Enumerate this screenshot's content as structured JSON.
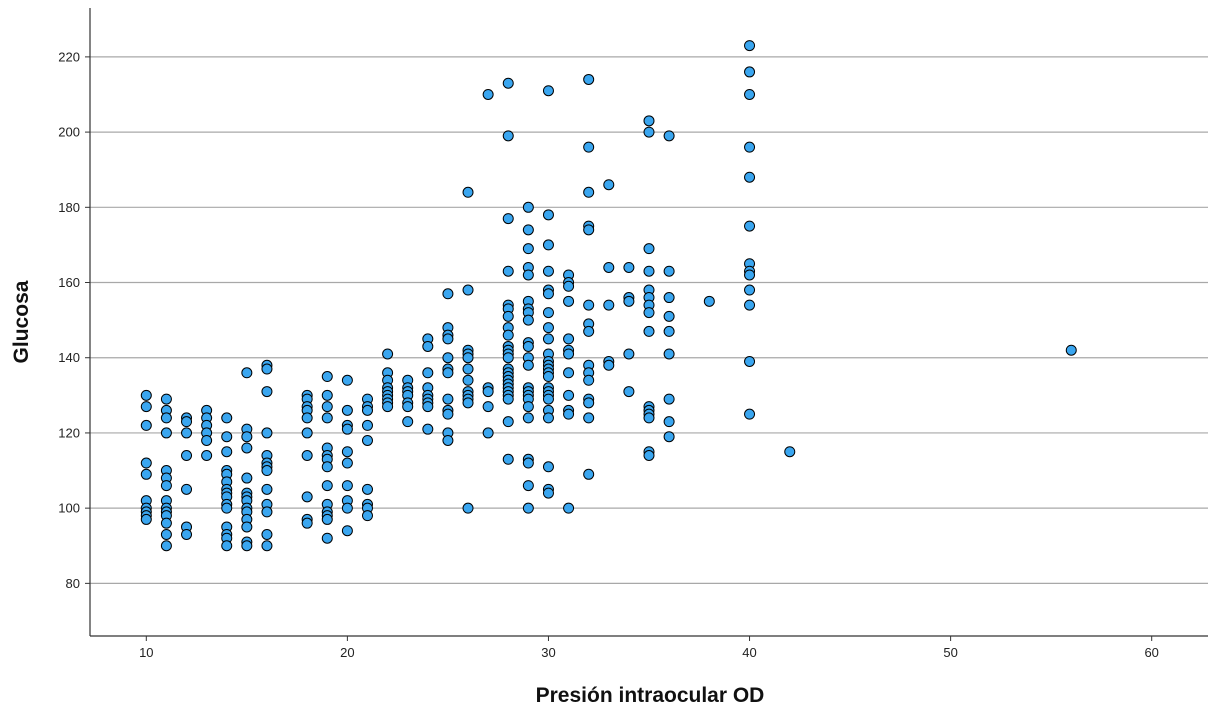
{
  "chart_data": {
    "type": "scatter",
    "xlabel": "Presión intraocular OD",
    "ylabel": "Glucosa",
    "xlim": [
      7.2,
      62.8
    ],
    "ylim": [
      66,
      233
    ],
    "x_ticks": [
      10,
      20,
      30,
      40,
      50,
      60
    ],
    "x_tick_labels": [
      "10",
      "20",
      "30",
      "40",
      "50",
      "60"
    ],
    "y_ticks": [
      80,
      100,
      120,
      140,
      160,
      180,
      200,
      220
    ],
    "y_tick_labels": [
      "80",
      "100",
      "120",
      "140",
      "160",
      "180",
      "200",
      "220"
    ],
    "grid": "horizontal",
    "marker_color": "#3aa6f0",
    "marker_edge_color": "#000000",
    "series": [
      {
        "points": [
          [
            10,
            130
          ],
          [
            10,
            127
          ],
          [
            10,
            122
          ],
          [
            10,
            112
          ],
          [
            10,
            109
          ],
          [
            10,
            102
          ],
          [
            10,
            100
          ],
          [
            10,
            99
          ],
          [
            10,
            98
          ],
          [
            10,
            97
          ],
          [
            11,
            129
          ],
          [
            11,
            126
          ],
          [
            11,
            124
          ],
          [
            11,
            120
          ],
          [
            11,
            110
          ],
          [
            11,
            108
          ],
          [
            11,
            106
          ],
          [
            11,
            102
          ],
          [
            11,
            100
          ],
          [
            11,
            99
          ],
          [
            11,
            98
          ],
          [
            11,
            96
          ],
          [
            11,
            93
          ],
          [
            11,
            90
          ],
          [
            12,
            124
          ],
          [
            12,
            123
          ],
          [
            12,
            120
          ],
          [
            12,
            114
          ],
          [
            12,
            105
          ],
          [
            12,
            95
          ],
          [
            12,
            93
          ],
          [
            13,
            126
          ],
          [
            13,
            124
          ],
          [
            13,
            122
          ],
          [
            13,
            120
          ],
          [
            13,
            118
          ],
          [
            13,
            114
          ],
          [
            14,
            124
          ],
          [
            14,
            119
          ],
          [
            14,
            115
          ],
          [
            14,
            110
          ],
          [
            14,
            109
          ],
          [
            14,
            107
          ],
          [
            14,
            105
          ],
          [
            14,
            104
          ],
          [
            14,
            103
          ],
          [
            14,
            101
          ],
          [
            14,
            100
          ],
          [
            14,
            95
          ],
          [
            14,
            93
          ],
          [
            14,
            92
          ],
          [
            14,
            90
          ],
          [
            15,
            136
          ],
          [
            15,
            121
          ],
          [
            15,
            119
          ],
          [
            15,
            116
          ],
          [
            15,
            108
          ],
          [
            15,
            104
          ],
          [
            15,
            103
          ],
          [
            15,
            102
          ],
          [
            15,
            100
          ],
          [
            15,
            99
          ],
          [
            15,
            97
          ],
          [
            15,
            95
          ],
          [
            15,
            91
          ],
          [
            15,
            90
          ],
          [
            16,
            138
          ],
          [
            16,
            137
          ],
          [
            16,
            131
          ],
          [
            16,
            120
          ],
          [
            16,
            114
          ],
          [
            16,
            112
          ],
          [
            16,
            111
          ],
          [
            16,
            110
          ],
          [
            16,
            105
          ],
          [
            16,
            101
          ],
          [
            16,
            99
          ],
          [
            16,
            93
          ],
          [
            16,
            90
          ],
          [
            18,
            130
          ],
          [
            18,
            129
          ],
          [
            18,
            127
          ],
          [
            18,
            126
          ],
          [
            18,
            124
          ],
          [
            18,
            120
          ],
          [
            18,
            114
          ],
          [
            18,
            103
          ],
          [
            18,
            97
          ],
          [
            18,
            96
          ],
          [
            19,
            135
          ],
          [
            19,
            130
          ],
          [
            19,
            127
          ],
          [
            19,
            124
          ],
          [
            19,
            116
          ],
          [
            19,
            114
          ],
          [
            19,
            113
          ],
          [
            19,
            111
          ],
          [
            19,
            106
          ],
          [
            19,
            101
          ],
          [
            19,
            99
          ],
          [
            19,
            98
          ],
          [
            19,
            97
          ],
          [
            19,
            92
          ],
          [
            20,
            134
          ],
          [
            20,
            126
          ],
          [
            20,
            122
          ],
          [
            20,
            121
          ],
          [
            20,
            115
          ],
          [
            20,
            112
          ],
          [
            20,
            106
          ],
          [
            20,
            102
          ],
          [
            20,
            100
          ],
          [
            20,
            94
          ],
          [
            21,
            129
          ],
          [
            21,
            127
          ],
          [
            21,
            126
          ],
          [
            21,
            122
          ],
          [
            21,
            118
          ],
          [
            21,
            105
          ],
          [
            21,
            101
          ],
          [
            21,
            100
          ],
          [
            21,
            98
          ],
          [
            22,
            141
          ],
          [
            22,
            136
          ],
          [
            22,
            134
          ],
          [
            22,
            132
          ],
          [
            22,
            131
          ],
          [
            22,
            130
          ],
          [
            22,
            129
          ],
          [
            22,
            128
          ],
          [
            22,
            127
          ],
          [
            23,
            134
          ],
          [
            23,
            132
          ],
          [
            23,
            131
          ],
          [
            23,
            130
          ],
          [
            23,
            128
          ],
          [
            23,
            127
          ],
          [
            23,
            123
          ],
          [
            24,
            145
          ],
          [
            24,
            143
          ],
          [
            24,
            136
          ],
          [
            24,
            132
          ],
          [
            24,
            130
          ],
          [
            24,
            129
          ],
          [
            24,
            128
          ],
          [
            24,
            127
          ],
          [
            24,
            121
          ],
          [
            25,
            157
          ],
          [
            25,
            148
          ],
          [
            25,
            146
          ],
          [
            25,
            145
          ],
          [
            25,
            140
          ],
          [
            25,
            137
          ],
          [
            25,
            136
          ],
          [
            25,
            129
          ],
          [
            25,
            126
          ],
          [
            25,
            125
          ],
          [
            25,
            120
          ],
          [
            25,
            118
          ],
          [
            26,
            184
          ],
          [
            26,
            158
          ],
          [
            26,
            142
          ],
          [
            26,
            141
          ],
          [
            26,
            140
          ],
          [
            26,
            137
          ],
          [
            26,
            134
          ],
          [
            26,
            131
          ],
          [
            26,
            130
          ],
          [
            26,
            129
          ],
          [
            26,
            128
          ],
          [
            26,
            100
          ],
          [
            27,
            210
          ],
          [
            27,
            132
          ],
          [
            27,
            131
          ],
          [
            27,
            127
          ],
          [
            27,
            120
          ],
          [
            28,
            213
          ],
          [
            28,
            199
          ],
          [
            28,
            177
          ],
          [
            28,
            163
          ],
          [
            28,
            154
          ],
          [
            28,
            153
          ],
          [
            28,
            151
          ],
          [
            28,
            148
          ],
          [
            28,
            146
          ],
          [
            28,
            143
          ],
          [
            28,
            142
          ],
          [
            28,
            141
          ],
          [
            28,
            140
          ],
          [
            28,
            137
          ],
          [
            28,
            136
          ],
          [
            28,
            135
          ],
          [
            28,
            134
          ],
          [
            28,
            133
          ],
          [
            28,
            132
          ],
          [
            28,
            131
          ],
          [
            28,
            130
          ],
          [
            28,
            129
          ],
          [
            28,
            123
          ],
          [
            28,
            113
          ],
          [
            29,
            180
          ],
          [
            29,
            174
          ],
          [
            29,
            169
          ],
          [
            29,
            164
          ],
          [
            29,
            162
          ],
          [
            29,
            155
          ],
          [
            29,
            153
          ],
          [
            29,
            152
          ],
          [
            29,
            150
          ],
          [
            29,
            144
          ],
          [
            29,
            143
          ],
          [
            29,
            140
          ],
          [
            29,
            138
          ],
          [
            29,
            132
          ],
          [
            29,
            131
          ],
          [
            29,
            130
          ],
          [
            29,
            129
          ],
          [
            29,
            127
          ],
          [
            29,
            124
          ],
          [
            29,
            113
          ],
          [
            29,
            112
          ],
          [
            29,
            106
          ],
          [
            29,
            100
          ],
          [
            30,
            211
          ],
          [
            30,
            178
          ],
          [
            30,
            170
          ],
          [
            30,
            163
          ],
          [
            30,
            158
          ],
          [
            30,
            157
          ],
          [
            30,
            152
          ],
          [
            30,
            148
          ],
          [
            30,
            145
          ],
          [
            30,
            141
          ],
          [
            30,
            139
          ],
          [
            30,
            138
          ],
          [
            30,
            137
          ],
          [
            30,
            136
          ],
          [
            30,
            135
          ],
          [
            30,
            132
          ],
          [
            30,
            131
          ],
          [
            30,
            130
          ],
          [
            30,
            129
          ],
          [
            30,
            126
          ],
          [
            30,
            124
          ],
          [
            30,
            111
          ],
          [
            30,
            105
          ],
          [
            30,
            104
          ],
          [
            31,
            162
          ],
          [
            31,
            160
          ],
          [
            31,
            159
          ],
          [
            31,
            155
          ],
          [
            31,
            145
          ],
          [
            31,
            142
          ],
          [
            31,
            141
          ],
          [
            31,
            136
          ],
          [
            31,
            130
          ],
          [
            31,
            126
          ],
          [
            31,
            125
          ],
          [
            31,
            100
          ],
          [
            32,
            214
          ],
          [
            32,
            196
          ],
          [
            32,
            184
          ],
          [
            32,
            175
          ],
          [
            32,
            174
          ],
          [
            32,
            154
          ],
          [
            32,
            149
          ],
          [
            32,
            147
          ],
          [
            32,
            138
          ],
          [
            32,
            136
          ],
          [
            32,
            134
          ],
          [
            32,
            129
          ],
          [
            32,
            128
          ],
          [
            32,
            124
          ],
          [
            32,
            109
          ],
          [
            33,
            186
          ],
          [
            33,
            164
          ],
          [
            33,
            154
          ],
          [
            33,
            139
          ],
          [
            33,
            138
          ],
          [
            34,
            164
          ],
          [
            34,
            156
          ],
          [
            34,
            155
          ],
          [
            34,
            141
          ],
          [
            34,
            131
          ],
          [
            35,
            203
          ],
          [
            35,
            200
          ],
          [
            35,
            169
          ],
          [
            35,
            163
          ],
          [
            35,
            158
          ],
          [
            35,
            156
          ],
          [
            35,
            154
          ],
          [
            35,
            152
          ],
          [
            35,
            147
          ],
          [
            35,
            127
          ],
          [
            35,
            126
          ],
          [
            35,
            125
          ],
          [
            35,
            124
          ],
          [
            35,
            115
          ],
          [
            35,
            114
          ],
          [
            36,
            199
          ],
          [
            36,
            163
          ],
          [
            36,
            156
          ],
          [
            36,
            151
          ],
          [
            36,
            147
          ],
          [
            36,
            141
          ],
          [
            36,
            129
          ],
          [
            36,
            123
          ],
          [
            36,
            119
          ],
          [
            38,
            155
          ],
          [
            40,
            223
          ],
          [
            40,
            216
          ],
          [
            40,
            210
          ],
          [
            40,
            196
          ],
          [
            40,
            188
          ],
          [
            40,
            175
          ],
          [
            40,
            165
          ],
          [
            40,
            163
          ],
          [
            40,
            162
          ],
          [
            40,
            158
          ],
          [
            40,
            154
          ],
          [
            40,
            139
          ],
          [
            40,
            125
          ],
          [
            42,
            115
          ],
          [
            56,
            142
          ]
        ]
      }
    ]
  }
}
